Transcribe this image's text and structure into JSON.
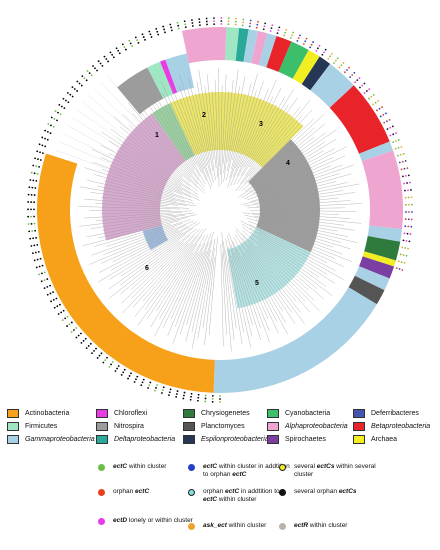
{
  "figure": {
    "clade_numbers": [
      "1",
      "2",
      "3",
      "4",
      "5",
      "6"
    ],
    "colors": {
      "actinobacteria": "#f7a11a",
      "firmicutes": "#9fe7c2",
      "gammaproteobacteria": "#a9d1e5",
      "chloroflexi": "#e83be3",
      "nitrospira": "#9c9c9c",
      "deltaproteobacteria": "#2aa89a",
      "chrysiogenetes": "#2f7a3d",
      "planctomyces": "#555555",
      "epsilonproteobacteria": "#253754",
      "cyanobacteria": "#3cbf6b",
      "alphaproteobacteria": "#eea5d0",
      "spirochaetes": "#7b3fa2",
      "deferribacteres": "#4455b0",
      "betaproteobacteria": "#e8242a",
      "archaea": "#f3ee22",
      "clade1": "#8fb0d8",
      "clade2": "#cf9bc6",
      "clade3": "#88c78e",
      "clade4": "#e8e14e",
      "clade5": "#8c8c8c",
      "clade6": "#a8dede"
    }
  },
  "taxa_legend": [
    {
      "name": "Actinobacteria",
      "color": "#f7a11a",
      "italic": false
    },
    {
      "name": "Chloroflexi",
      "color": "#e83be3",
      "italic": false
    },
    {
      "name": "Chrysiogenetes",
      "color": "#2f7a3d",
      "italic": false
    },
    {
      "name": "Cyanobacteria",
      "color": "#3cbf6b",
      "italic": false
    },
    {
      "name": "Deferribacteres",
      "color": "#4455b0",
      "italic": false
    },
    {
      "name": "Firmicutes",
      "color": "#9fe7c2",
      "italic": false
    },
    {
      "name": "Nitrospira",
      "color": "#9c9c9c",
      "italic": false
    },
    {
      "name": "Planctomyces",
      "color": "#555555",
      "italic": false
    },
    {
      "name": "Alphaproteobacteria",
      "color": "#eea5d0",
      "italic": true
    },
    {
      "name": "Betaproteobacteria",
      "color": "#e8242a",
      "italic": true
    },
    {
      "name": "Gammaproteobacteria",
      "color": "#a9d1e5",
      "italic": true
    },
    {
      "name": "Deltaproteobacteria",
      "color": "#2aa89a",
      "italic": true
    },
    {
      "name": "Espilonproteobacteria",
      "color": "#253754",
      "italic": true
    },
    {
      "name": "Spirochaetes",
      "color": "#7b3fa2",
      "italic": false
    },
    {
      "name": "Archaea",
      "color": "#f3ee22",
      "italic": false
    }
  ],
  "marker_legend": {
    "m1": {
      "color": "#6abf45",
      "gene": "ectC",
      "rest": " within cluster"
    },
    "m2": {
      "color": "#2340c8",
      "gene": "ectC",
      "rest": " within cluster in addtition to orphan ",
      "gene2": "ectC"
    },
    "m3": {
      "color": "#f4ee20",
      "pre": "several ",
      "gene": "ectCs",
      "rest": " within several cluster"
    },
    "m4": {
      "color": "#e8401c",
      "pre": "orphan ",
      "gene": "ectC",
      "rest": ""
    },
    "m5": {
      "color": "#7fe0dc",
      "pre": "orphan ",
      "gene": "ectC",
      "rest": " in addtition to ",
      "gene2": "ectC",
      "rest2": " within cluster"
    },
    "m6": {
      "color": "#111111",
      "pre": "several orphan ",
      "gene": "ectCs",
      "rest": ""
    },
    "m7": {
      "color": "#e63be8",
      "gene": "ectD",
      "rest": " lonely or within cluster"
    },
    "m8": {
      "color": "#f0a22f",
      "gene": "ask_ect",
      "rest": " within cluster"
    },
    "m9": {
      "color": "#b8b2aa",
      "gene": "ectR",
      "rest": " within cluster"
    }
  }
}
